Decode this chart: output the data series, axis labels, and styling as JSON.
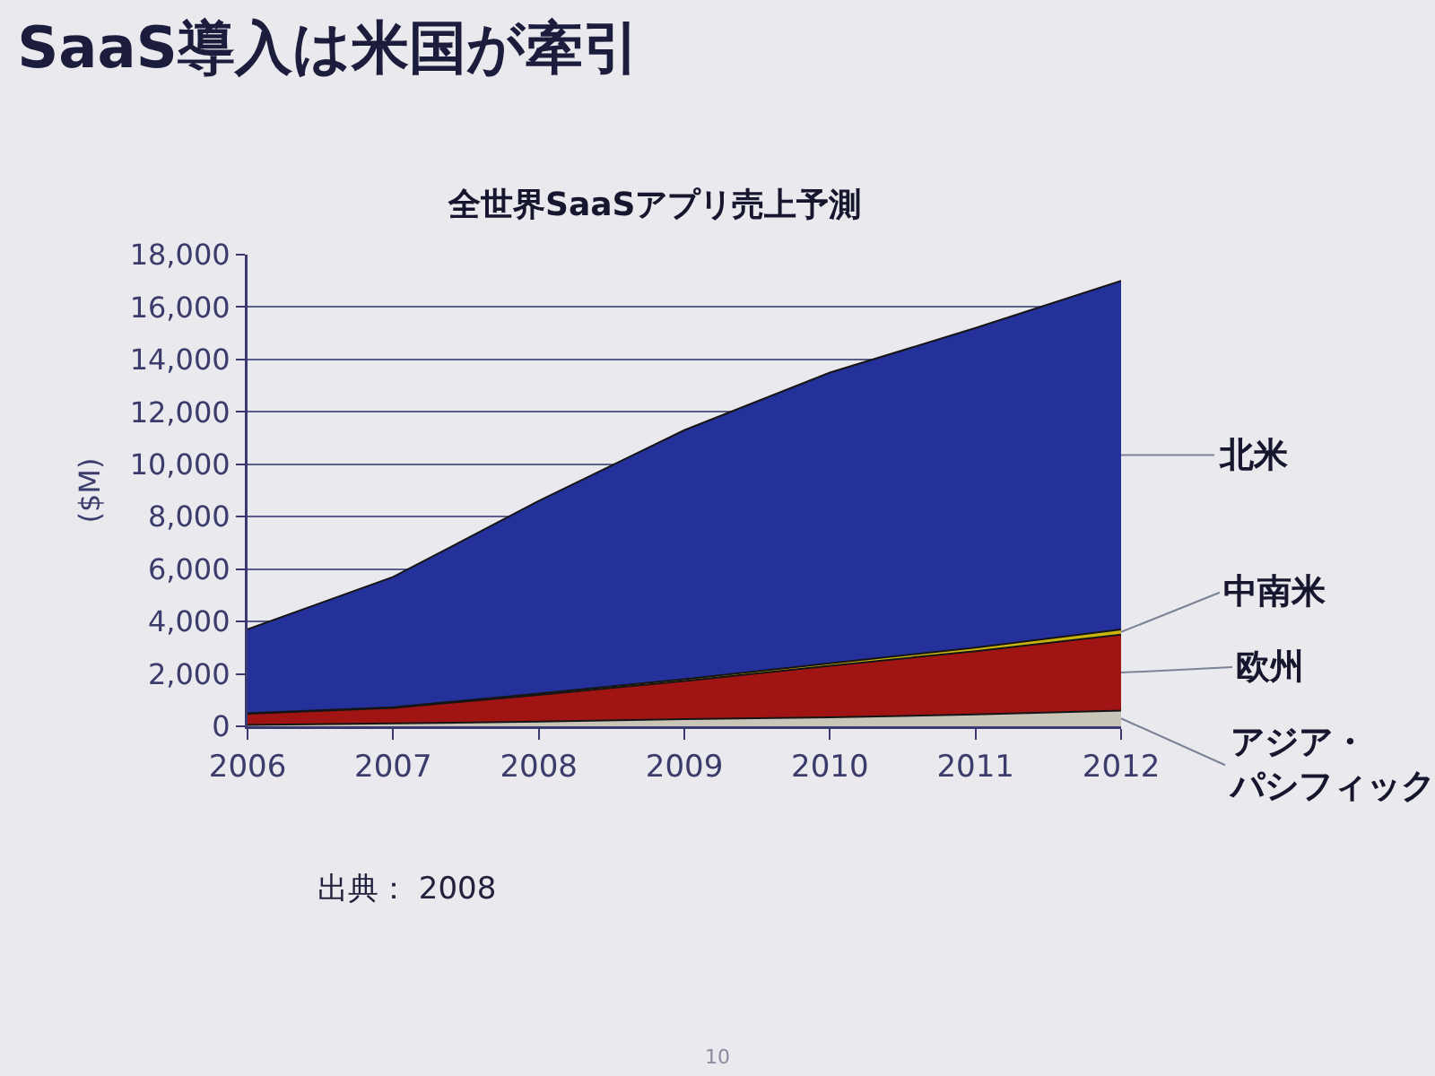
{
  "chart_data": {
    "type": "area",
    "title": "SaaS導入は米国が牽引",
    "subtitle": "全世界SaaSアプリ売上予測",
    "ylabel": "($M)",
    "annotations": [
      "出典： 2008",
      "10"
    ],
    "x": [
      2006,
      2007,
      2008,
      2009,
      2010,
      2011,
      2012
    ],
    "xlim": [
      2006,
      2012
    ],
    "xticks": [
      2006,
      2007,
      2008,
      2009,
      2010,
      2011,
      2012
    ],
    "ylim": [
      0,
      18000
    ],
    "yticks": [
      0,
      {
        "value": 2000,
        "label": "2,000"
      },
      {
        "value": 4000,
        "label": "4,000"
      },
      {
        "value": 6000,
        "label": "6,000"
      },
      {
        "value": 8000,
        "label": "8,000"
      },
      {
        "value": 10000,
        "label": "10,000"
      },
      {
        "value": 12000,
        "label": "12,000"
      },
      {
        "value": 14000,
        "label": "14,000"
      },
      {
        "value": 16000,
        "label": "16,000"
      },
      {
        "value": 18000,
        "label": "18,000"
      }
    ],
    "stacked": true,
    "grid": "y",
    "legend": false,
    "series": [
      {
        "name": "アジア・パシフィック",
        "color": "#c9c5b9",
        "values": [
          50,
          110,
          180,
          270,
          340,
          450,
          600
        ]
      },
      {
        "name": "欧州",
        "color": "#a11414",
        "values": [
          430,
          590,
          1020,
          1460,
          1970,
          2420,
          2900
        ]
      },
      {
        "name": "中南米",
        "color": "#c9b410",
        "values": [
          20,
          30,
          50,
          70,
          90,
          130,
          200
        ]
      },
      {
        "name": "北米",
        "color": "#24319a",
        "values": [
          3200,
          4970,
          7350,
          9500,
          11100,
          12200,
          13300
        ]
      }
    ]
  }
}
